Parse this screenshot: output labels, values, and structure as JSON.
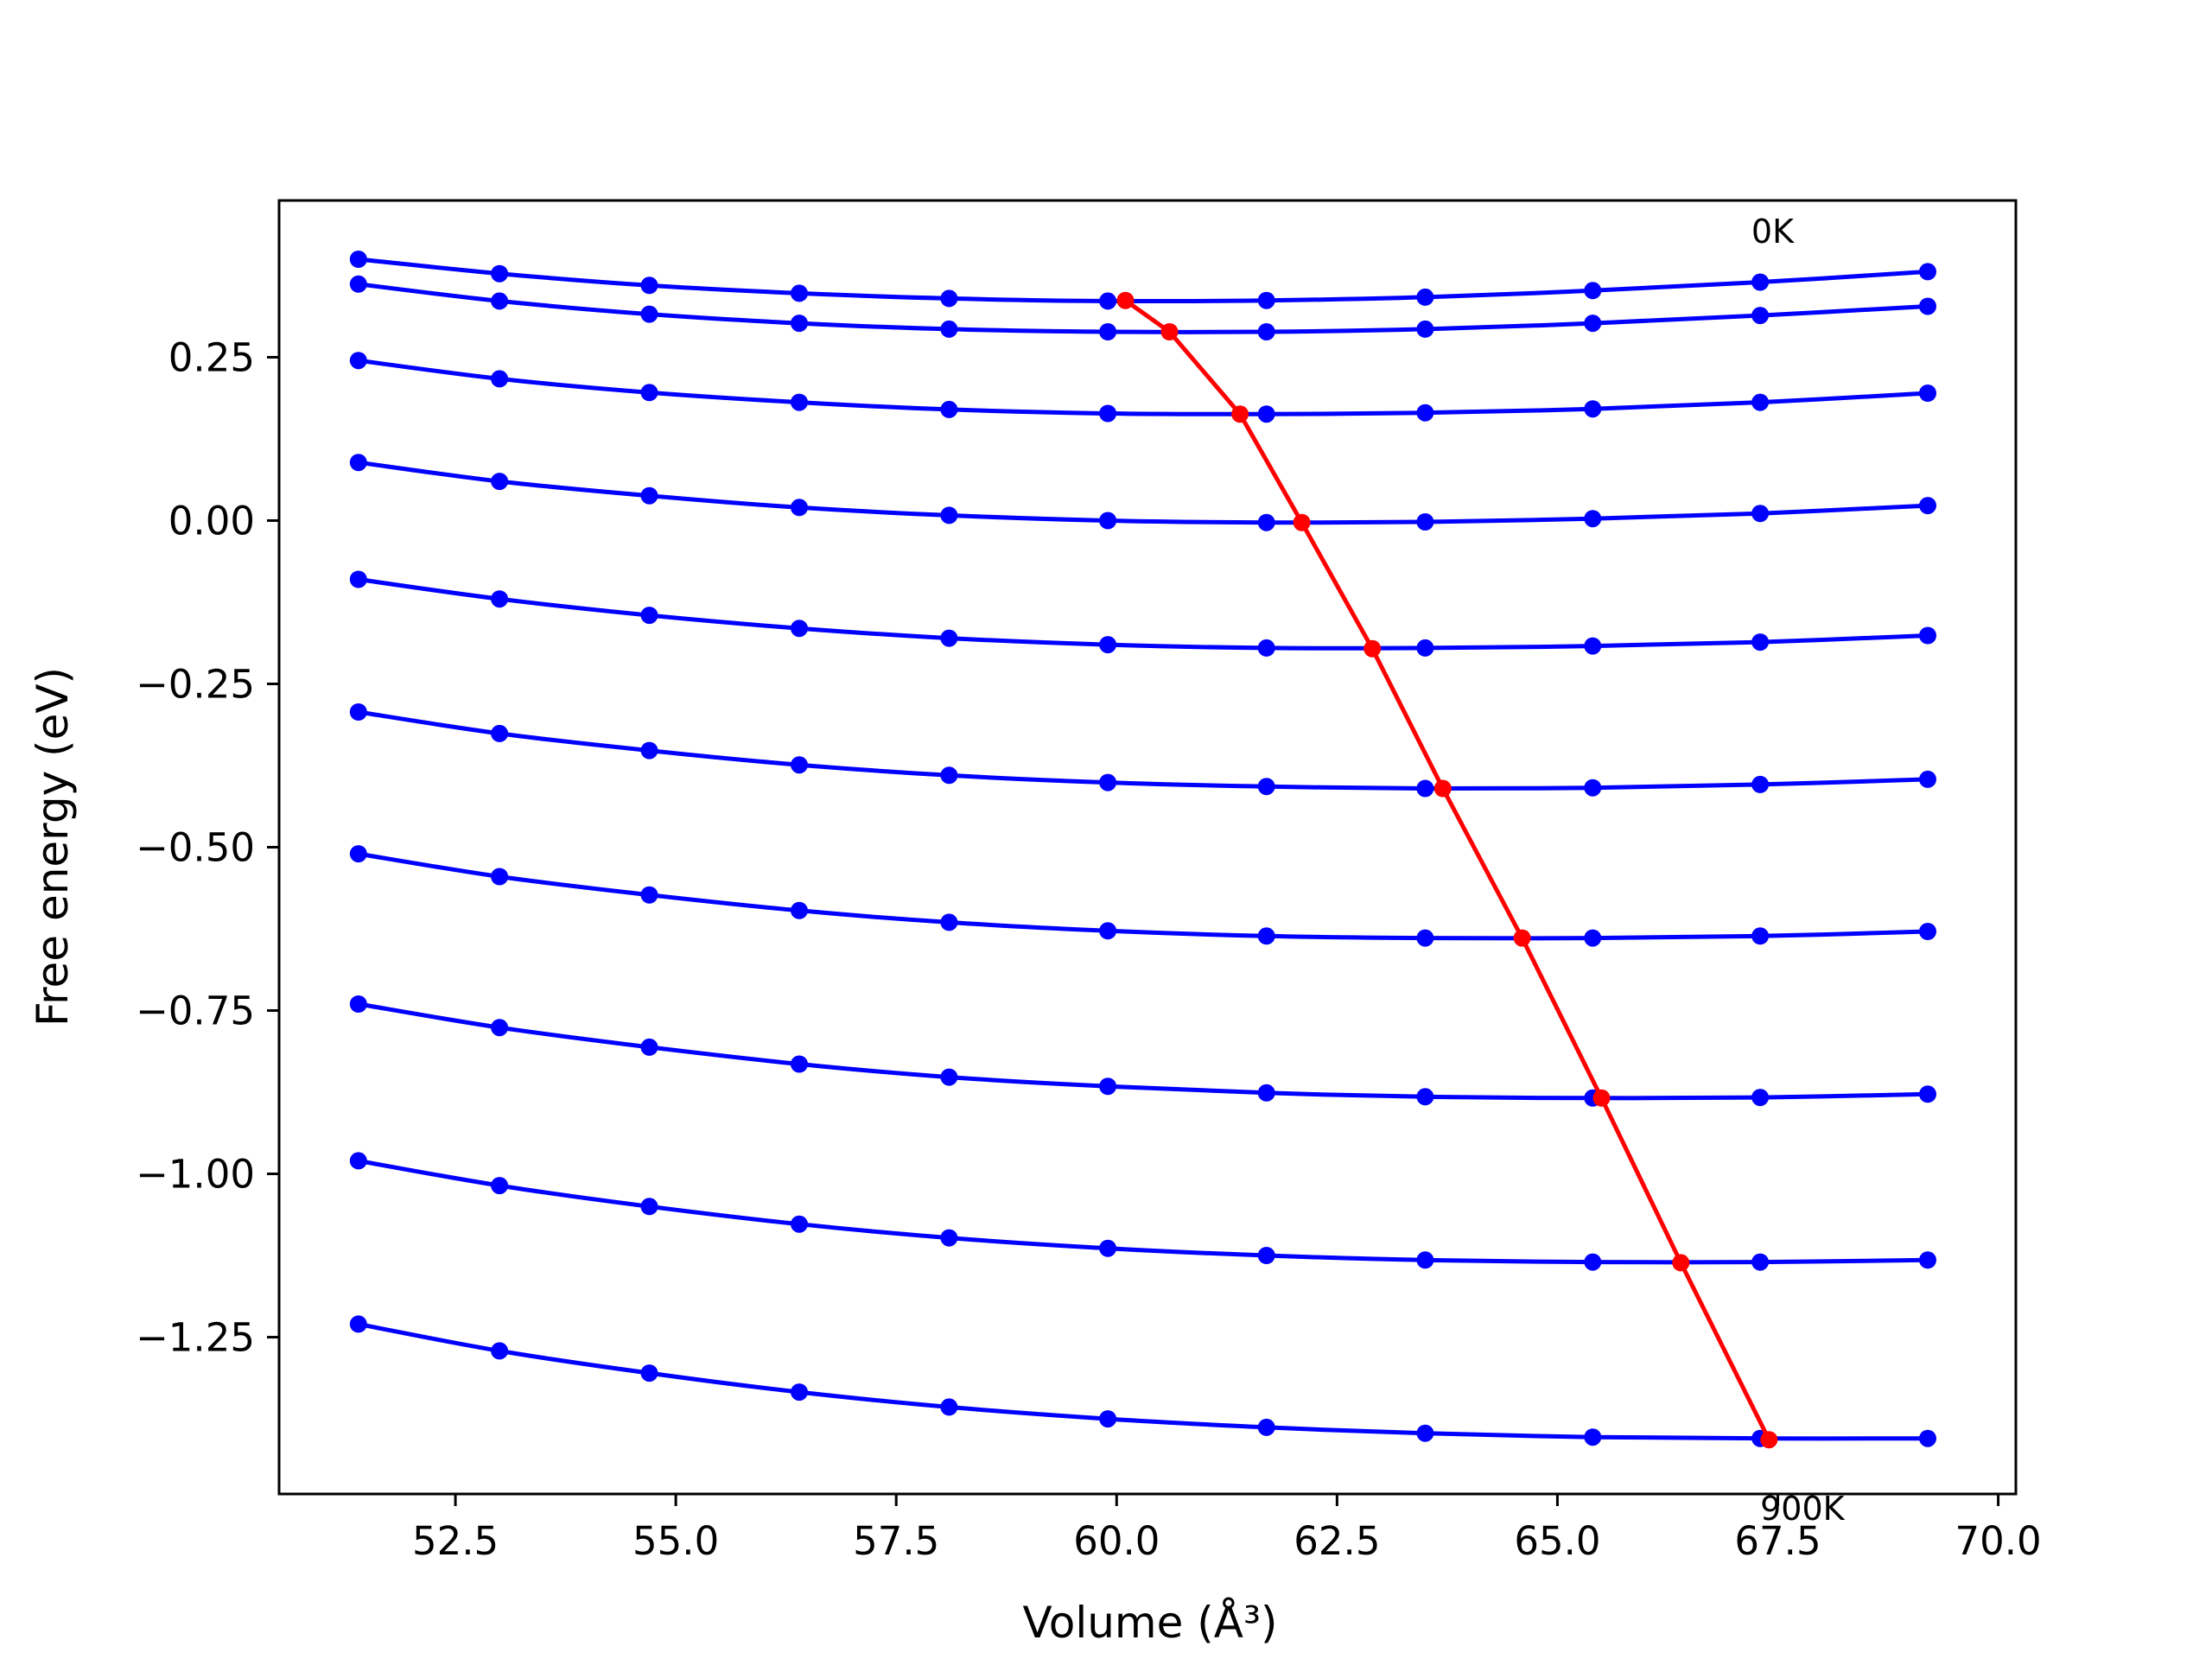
{
  "chart_data": {
    "type": "line",
    "title": "",
    "xlabel": "Volume (Å³)",
    "ylabel": "Free energy (eV)",
    "xlim": [
      50.5,
      70.2
    ],
    "ylim": [
      -1.49,
      0.49
    ],
    "grid": false,
    "legend": "none",
    "x_ticks": [
      52.5,
      55.0,
      57.5,
      60.0,
      62.5,
      65.0,
      67.5,
      70.0
    ],
    "x_tick_labels": [
      "52.5",
      "55.0",
      "57.5",
      "60.0",
      "62.5",
      "65.0",
      "67.5",
      "70.0"
    ],
    "y_ticks": [
      0.25,
      0.0,
      -0.25,
      -0.5,
      -0.75,
      -1.0,
      -1.25
    ],
    "y_tick_labels": [
      "0.25",
      "0.00",
      "−0.25",
      "−0.50",
      "−0.75",
      "−1.00",
      "−1.25"
    ],
    "colors": {
      "curves": "#0000ff",
      "minimum_path": "#ff0000",
      "axes": "#000000"
    },
    "x": [
      51.4,
      53.0,
      54.7,
      56.4,
      58.1,
      59.9,
      61.7,
      63.5,
      65.4,
      67.3,
      69.2
    ],
    "series": [
      {
        "values": [
          0.4,
          0.378,
          0.36,
          0.348,
          0.34,
          0.336,
          0.337,
          0.342,
          0.352,
          0.365,
          0.381
        ]
      },
      {
        "values": [
          0.362,
          0.336,
          0.316,
          0.302,
          0.293,
          0.289,
          0.289,
          0.293,
          0.302,
          0.314,
          0.328
        ]
      },
      {
        "values": [
          0.245,
          0.217,
          0.196,
          0.181,
          0.17,
          0.164,
          0.163,
          0.165,
          0.171,
          0.181,
          0.195
        ]
      },
      {
        "values": [
          0.089,
          0.06,
          0.038,
          0.02,
          0.008,
          0.0,
          -0.003,
          -0.002,
          0.003,
          0.011,
          0.023
        ]
      },
      {
        "values": [
          -0.09,
          -0.12,
          -0.145,
          -0.165,
          -0.18,
          -0.19,
          -0.195,
          -0.195,
          -0.192,
          -0.186,
          -0.176
        ]
      },
      {
        "values": [
          -0.293,
          -0.326,
          -0.352,
          -0.374,
          -0.39,
          -0.401,
          -0.407,
          -0.41,
          -0.409,
          -0.404,
          -0.396
        ]
      },
      {
        "values": [
          -0.51,
          -0.545,
          -0.573,
          -0.597,
          -0.615,
          -0.628,
          -0.636,
          -0.639,
          -0.639,
          -0.636,
          -0.629
        ]
      },
      {
        "values": [
          -0.74,
          -0.776,
          -0.806,
          -0.832,
          -0.852,
          -0.866,
          -0.876,
          -0.882,
          -0.884,
          -0.883,
          -0.878
        ]
      },
      {
        "values": [
          -0.98,
          -1.018,
          -1.05,
          -1.077,
          -1.098,
          -1.114,
          -1.125,
          -1.132,
          -1.135,
          -1.135,
          -1.132
        ]
      },
      {
        "values": [
          -1.23,
          -1.271,
          -1.305,
          -1.334,
          -1.357,
          -1.375,
          -1.388,
          -1.397,
          -1.403,
          -1.405,
          -1.405
        ]
      }
    ],
    "minimum_path": {
      "x": [
        60.1,
        60.6,
        61.4,
        62.1,
        62.9,
        63.7,
        64.6,
        65.5,
        66.4,
        67.4
      ],
      "y": [
        0.337,
        0.289,
        0.163,
        -0.003,
        -0.196,
        -0.41,
        -0.639,
        -0.884,
        -1.136,
        -1.407
      ]
    },
    "annotations": [
      {
        "text": "0K",
        "x": 67.2,
        "y": 0.425
      },
      {
        "text": "900K",
        "x": 67.3,
        "y": -1.53
      }
    ]
  }
}
